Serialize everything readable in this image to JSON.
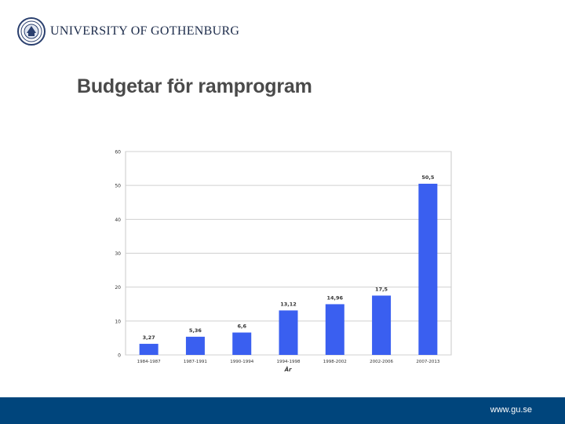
{
  "header": {
    "university_name": "UNIVERSITY OF GOTHENBURG",
    "logo_icon": "university-seal-icon",
    "slide_title": "Budgetar för ramprogram"
  },
  "chart_data": {
    "type": "bar",
    "title": "",
    "xlabel": "År",
    "ylabel": "",
    "categories": [
      "1984-1987",
      "1987-1991",
      "1990-1994",
      "1994-1998",
      "1998-2002",
      "2002-2006",
      "2007-2013"
    ],
    "values": [
      3.27,
      5.36,
      6.6,
      13.12,
      14.96,
      17.5,
      50.5
    ],
    "value_labels": [
      "3,27",
      "5,36",
      "6,6",
      "13,12",
      "14,96",
      "17,5",
      "50,5"
    ],
    "ylim": [
      0,
      60
    ],
    "yticks": [
      0,
      10,
      20,
      30,
      40,
      50,
      60
    ],
    "grid": true,
    "bar_color": "#3a5ff0"
  },
  "footer": {
    "url": "www.gu.se",
    "color": "#00457c"
  }
}
